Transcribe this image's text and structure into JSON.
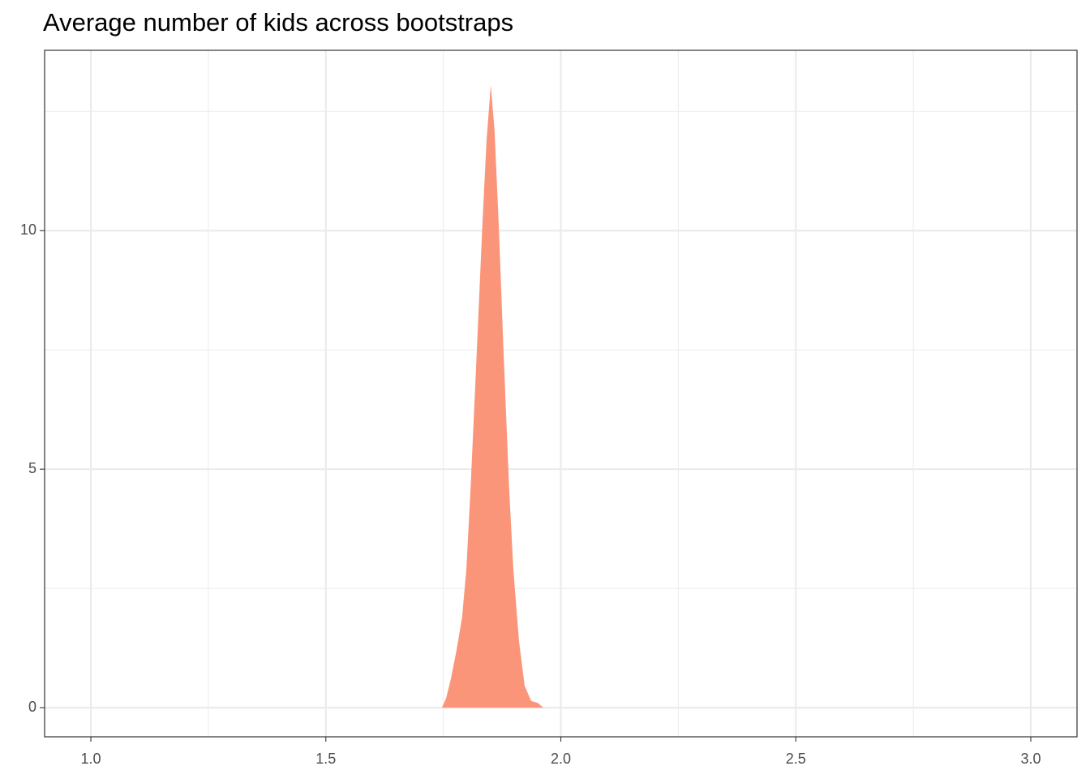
{
  "chart_data": {
    "type": "density",
    "title": "Average number of kids across bootstraps",
    "x": [
      1.747,
      1.756,
      1.766,
      1.778,
      1.79,
      1.799,
      1.808,
      1.82,
      1.833,
      1.842,
      1.851,
      1.859,
      1.868,
      1.878,
      1.89,
      1.899,
      1.911,
      1.923,
      1.937,
      1.951,
      1.963
    ],
    "values": [
      0,
      0.2,
      0.6,
      1.2,
      1.9,
      2.9,
      4.6,
      7.2,
      10.1,
      11.9,
      13.05,
      12.1,
      10.1,
      7.5,
      4.6,
      2.9,
      1.4,
      0.46,
      0.14,
      0.1,
      0
    ],
    "color": "#fa9579",
    "xlim": [
      0.9016,
      3.0984
    ],
    "ylim": [
      -0.61,
      13.78
    ],
    "xticks": [
      {
        "value": 1,
        "label": "1.0"
      },
      1.5,
      {
        "value": 2,
        "label": "2.0"
      },
      2.5,
      {
        "value": 3,
        "label": "3.0"
      }
    ],
    "yticks": [
      0,
      5,
      10
    ],
    "x_minor_grid": [
      1.25,
      1.75,
      2.25,
      2.75
    ],
    "y_minor_grid": [
      2.5,
      7.5,
      12.5
    ],
    "grid": true
  }
}
